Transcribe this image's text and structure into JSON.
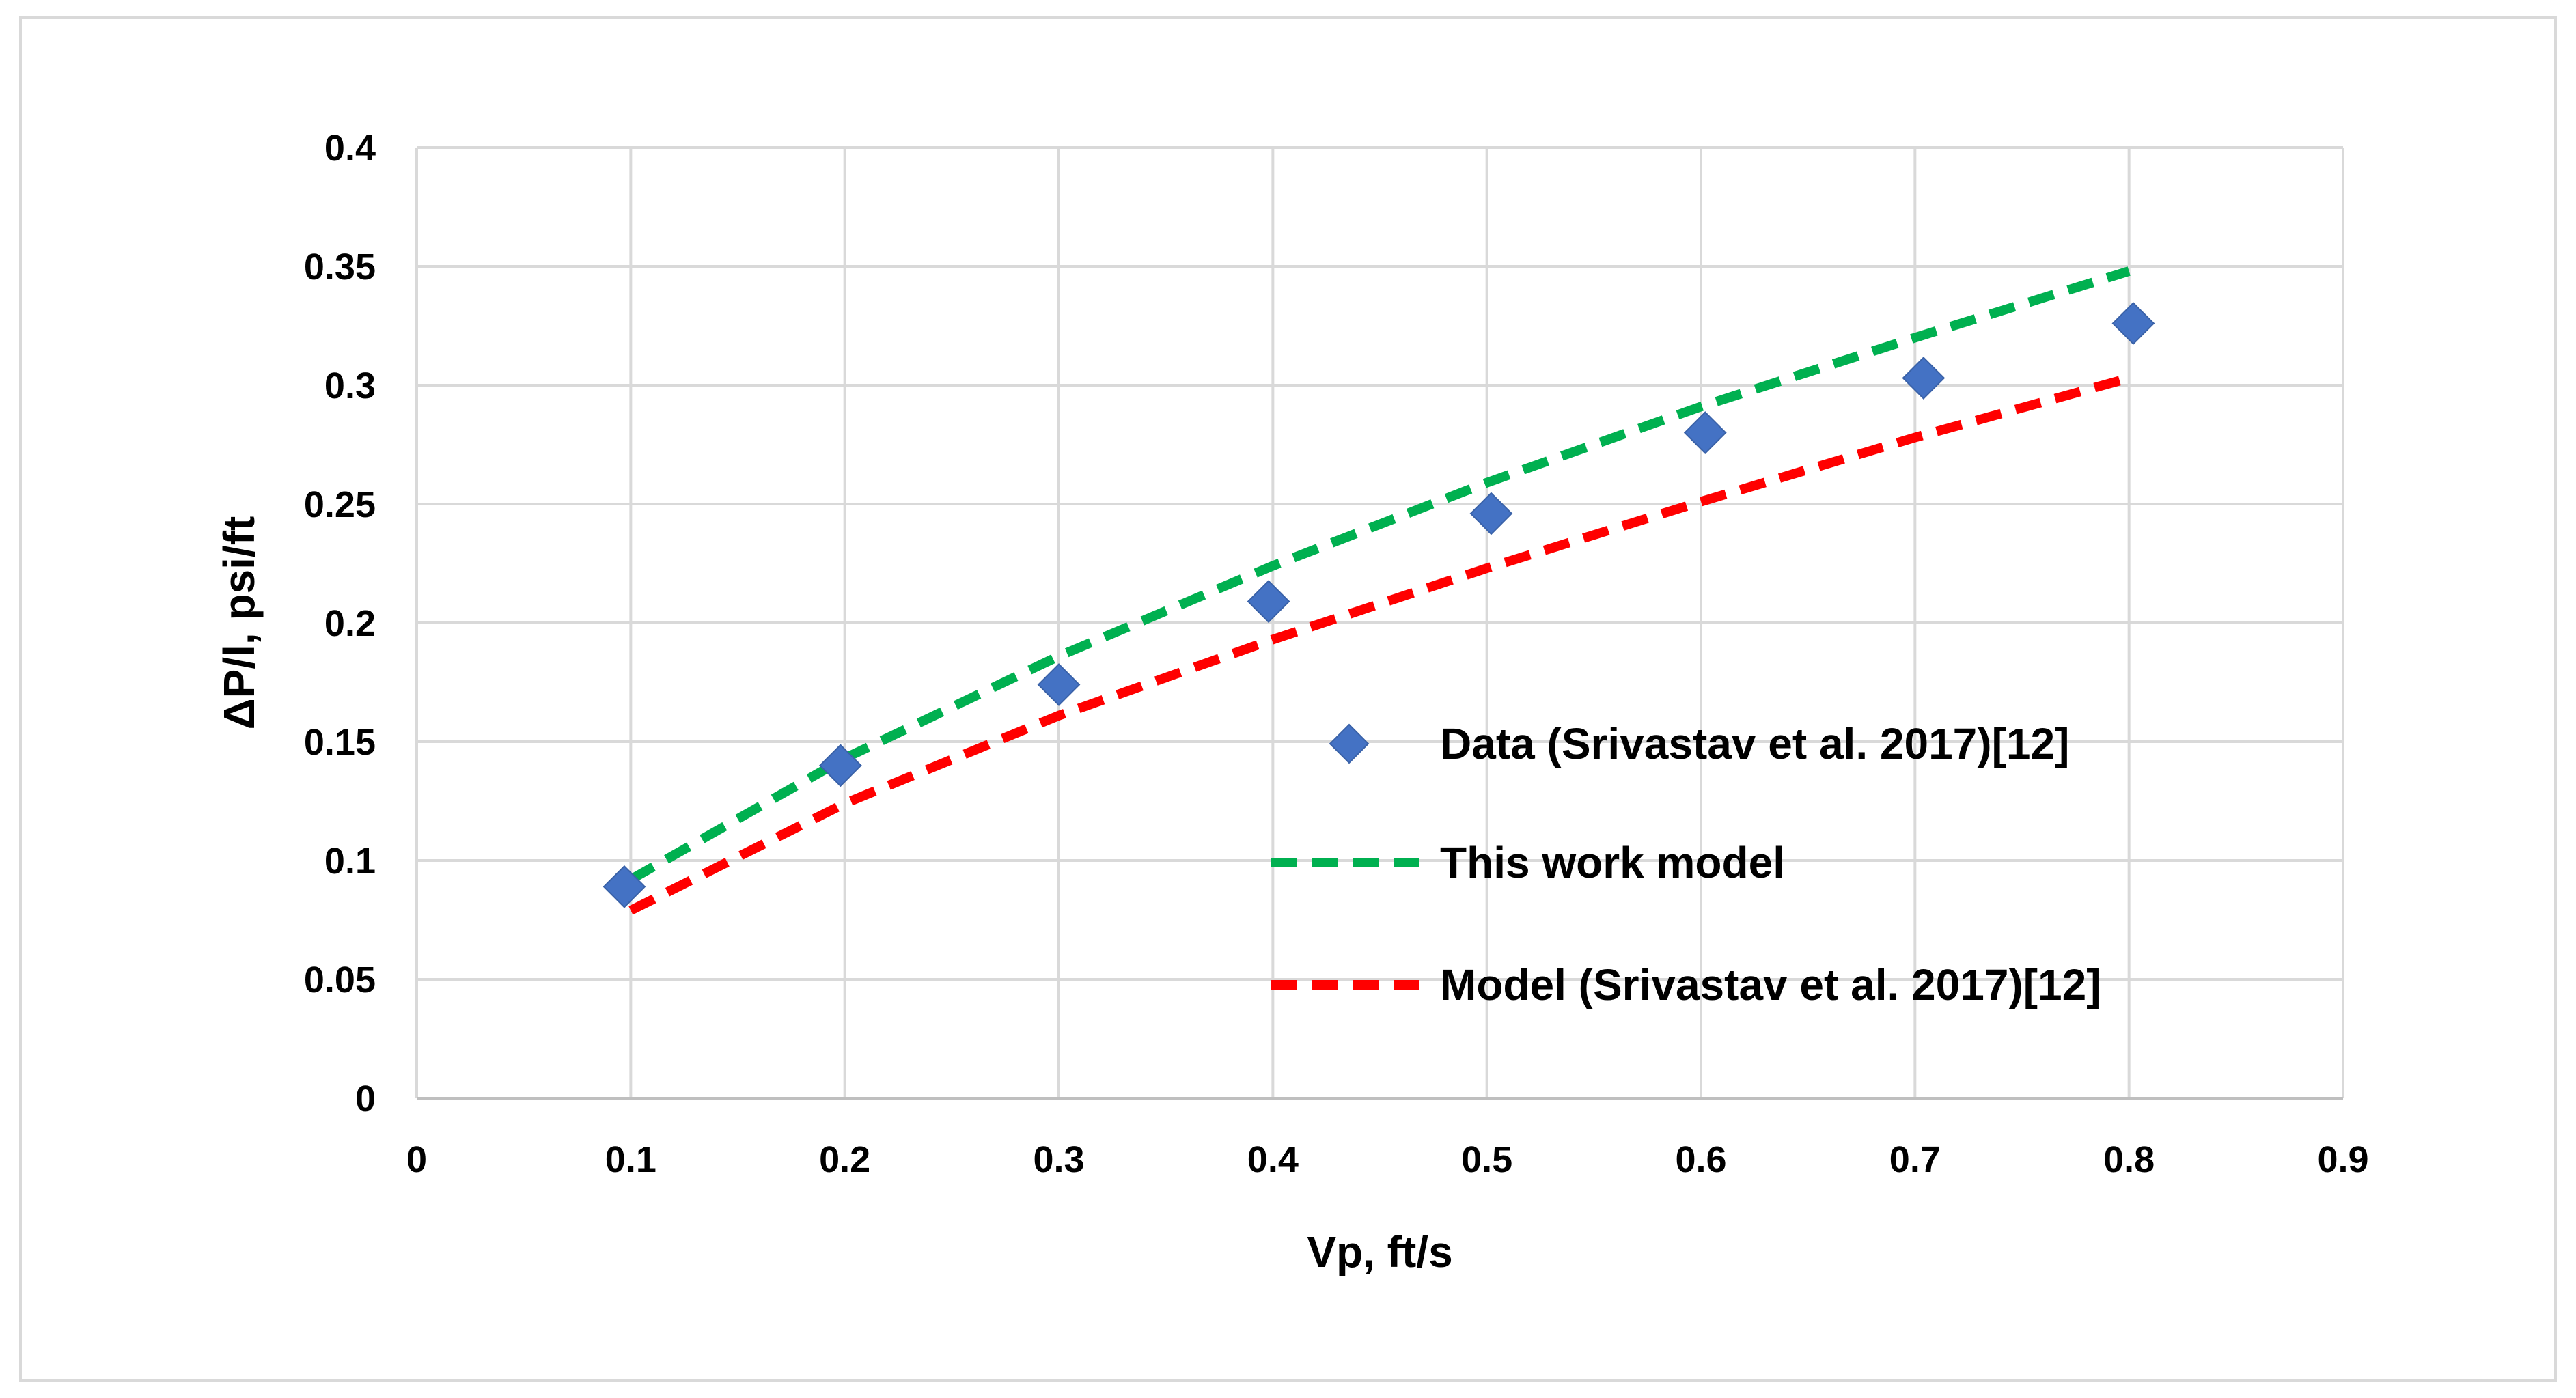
{
  "chart_data": {
    "type": "scatter",
    "title": "",
    "xlabel": "Vp, ft/s",
    "ylabel": "ΔP/l, psi/ft",
    "xlim": [
      0,
      0.9
    ],
    "ylim": [
      0,
      0.4
    ],
    "x_ticks": [
      "0",
      "0.1",
      "0.2",
      "0.3",
      "0.4",
      "0.5",
      "0.6",
      "0.7",
      "0.8",
      "0.9"
    ],
    "y_ticks": [
      "0",
      "0.05",
      "0.1",
      "0.15",
      "0.2",
      "0.25",
      "0.3",
      "0.35",
      "0.4"
    ],
    "grid": true,
    "legend_position": "center-right",
    "series": [
      {
        "name": "Data (Srivastav et al. 2017)[12]",
        "style": "markers",
        "marker": "diamond",
        "color": "#4472C4",
        "x": [
          0.097,
          0.198,
          0.3,
          0.398,
          0.502,
          0.602,
          0.704,
          0.802
        ],
        "y": [
          0.089,
          0.14,
          0.174,
          0.209,
          0.246,
          0.28,
          0.303,
          0.326
        ]
      },
      {
        "name": "This work model",
        "style": "dashed-line",
        "color": "#00B050",
        "x": [
          0.1,
          0.2,
          0.3,
          0.4,
          0.5,
          0.6,
          0.7,
          0.8
        ],
        "y": [
          0.092,
          0.143,
          0.186,
          0.224,
          0.259,
          0.291,
          0.32,
          0.348
        ]
      },
      {
        "name": "Model (Srivastav et al. 2017)[12]",
        "style": "dashed-line",
        "color": "#FF0000",
        "x": [
          0.1,
          0.2,
          0.3,
          0.4,
          0.5,
          0.6,
          0.7,
          0.8
        ],
        "y": [
          0.079,
          0.124,
          0.161,
          0.193,
          0.223,
          0.251,
          0.278,
          0.303
        ]
      }
    ]
  }
}
